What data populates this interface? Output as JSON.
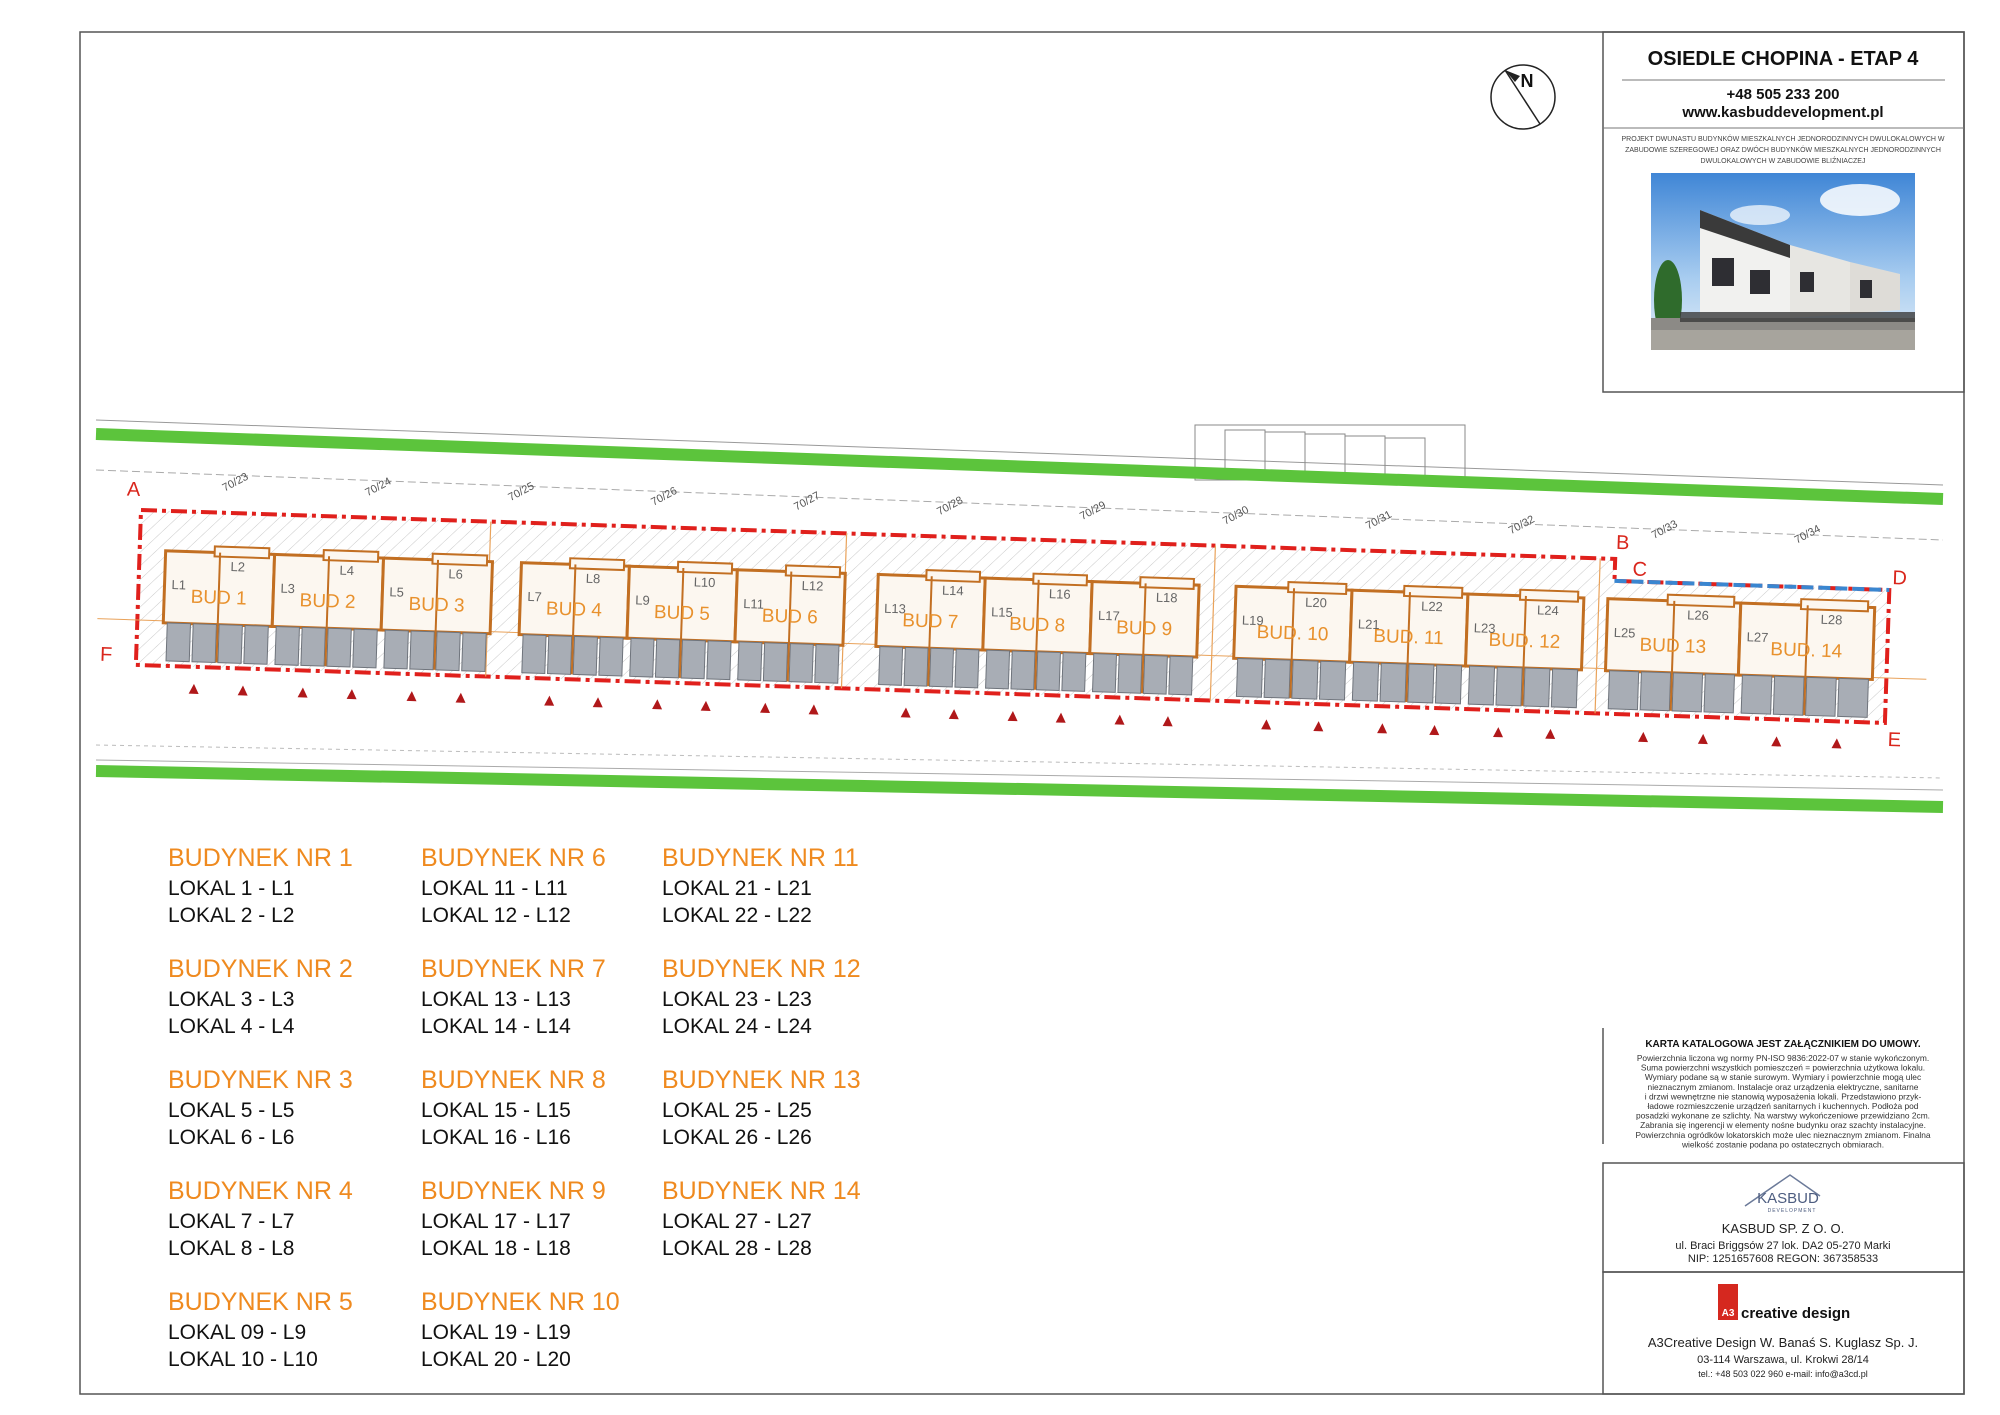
{
  "header": {
    "title": "OSIEDLE CHOPINA - ETAP 4",
    "phone": "+48 505 233 200",
    "website": "www.kasbuddevelopment.pl",
    "description": [
      "PROJEKT DWUNASTU BUDYNKÓW MIESZKALNYCH JEDNORODZINNYCH DWULOKALOWYCH W",
      "ZABUDOWIE SZEREGOWEJ ORAZ DWÓCH BUDYNKÓW MIESZKALNYCH JEDNORODZINNYCH",
      "DWULOKALOWYCH W ZABUDOWIE BLIŹNIACZEJ"
    ]
  },
  "compass": "N",
  "site_plan": {
    "points": [
      "A",
      "B",
      "C",
      "D",
      "E",
      "F"
    ],
    "parcels": [
      "70/23",
      "70/24",
      "70/25",
      "70/26",
      "70/27",
      "70/28",
      "70/29",
      "70/30",
      "70/31",
      "70/32",
      "70/33",
      "70/34"
    ],
    "buildings": [
      {
        "label": "BUD 1",
        "units": [
          "L1",
          "L2"
        ]
      },
      {
        "label": "BUD 2",
        "units": [
          "L3",
          "L4"
        ]
      },
      {
        "label": "BUD 3",
        "units": [
          "L5",
          "L6"
        ]
      },
      {
        "label": "BUD 4",
        "units": [
          "L7",
          "L8"
        ]
      },
      {
        "label": "BUD 5",
        "units": [
          "L9",
          "L10"
        ]
      },
      {
        "label": "BUD 6",
        "units": [
          "L11",
          "L12"
        ]
      },
      {
        "label": "BUD 7",
        "units": [
          "L13",
          "L14"
        ]
      },
      {
        "label": "BUD 8",
        "units": [
          "L15",
          "L16"
        ]
      },
      {
        "label": "BUD 9",
        "units": [
          "L17",
          "L18"
        ]
      },
      {
        "label": "BUD. 10",
        "units": [
          "L19",
          "L20"
        ]
      },
      {
        "label": "BUD. 11",
        "units": [
          "L21",
          "L22"
        ]
      },
      {
        "label": "BUD. 12",
        "units": [
          "L23",
          "L24"
        ]
      },
      {
        "label": "BUD 13",
        "units": [
          "L25",
          "L26"
        ]
      },
      {
        "label": "BUD. 14",
        "units": [
          "L27",
          "L28"
        ]
      }
    ]
  },
  "legend": [
    {
      "title": "BUDYNEK NR 1",
      "lines": [
        "LOKAL 1 - L1",
        "LOKAL 2 - L2"
      ]
    },
    {
      "title": "BUDYNEK NR 2",
      "lines": [
        "LOKAL 3 - L3",
        "LOKAL 4 - L4"
      ]
    },
    {
      "title": "BUDYNEK NR 3",
      "lines": [
        "LOKAL 5 - L5",
        "LOKAL 6 - L6"
      ]
    },
    {
      "title": "BUDYNEK NR 4",
      "lines": [
        "LOKAL 7 - L7",
        "LOKAL 8 - L8"
      ]
    },
    {
      "title": "BUDYNEK NR 5",
      "lines": [
        "LOKAL 09 - L9",
        "LOKAL 10 - L10"
      ]
    },
    {
      "title": "BUDYNEK NR 6",
      "lines": [
        "LOKAL 11 - L11",
        "LOKAL 12 - L12"
      ]
    },
    {
      "title": "BUDYNEK NR 7",
      "lines": [
        "LOKAL 13 - L13",
        "LOKAL 14 - L14"
      ]
    },
    {
      "title": "BUDYNEK NR 8",
      "lines": [
        "LOKAL 15 - L15",
        "LOKAL 16 - L16"
      ]
    },
    {
      "title": "BUDYNEK NR 9",
      "lines": [
        "LOKAL 17 - L17",
        "LOKAL 18 - L18"
      ]
    },
    {
      "title": "BUDYNEK NR 10",
      "lines": [
        "LOKAL 19 - L19",
        "LOKAL 20 - L20"
      ]
    },
    {
      "title": "BUDYNEK NR 11",
      "lines": [
        "LOKAL 21 - L21",
        "LOKAL 22 - L22"
      ]
    },
    {
      "title": "BUDYNEK NR 12",
      "lines": [
        "LOKAL 23 - L23",
        "LOKAL 24 - L24"
      ]
    },
    {
      "title": "BUDYNEK NR 13",
      "lines": [
        "LOKAL 25 - L25",
        "LOKAL 26 - L26"
      ]
    },
    {
      "title": "BUDYNEK NR 14",
      "lines": [
        "LOKAL 27 - L27",
        "LOKAL 28 - L28"
      ]
    }
  ],
  "note": {
    "title": "KARTA KATALOGOWA JEST ZAŁĄCZNIKIEM DO UMOWY.",
    "lines": [
      "Powierzchnia liczona wg normy PN-ISO 9836:2022-07 w stanie wykończonym.",
      "Suma powierzchni wszystkich pomieszczeń = powierzchnia użytkowa lokalu.",
      "Wymiary podane są w stanie surowym. Wymiary i powierzchnie mogą ulec",
      "nieznacznym zmianom. Instalacje oraz urządzenia elektryczne, sanitarne",
      "i drzwi wewnętrzne nie stanowią wyposażenia lokali. Przedstawiono przyk-",
      "ładowe rozmieszczenie urządzeń sanitarnych i kuchennych. Podłoża pod",
      "posadzki wykonane ze szlichty. Na warstwy wykończeniowe przewidziano 2cm.",
      "Zabrania się ingerencji w elementy nośne budynku oraz szachty instalacyjne.",
      "Powierzchnia ogródków lokatorskich może ulec nieznacznym zmianom. Finalna",
      "wielkość zostanie podana po ostatecznych obmiarach."
    ]
  },
  "developer": {
    "logo": "KASBUD",
    "logo_sub": "DEVELOPMENT",
    "name": "KASBUD SP. Z O. O.",
    "address": "ul. Braci Briggsów 27 lok. DA2 05-270 Marki",
    "ids": "NIP: 1251657608  REGON: 367358533"
  },
  "designer": {
    "logo_mark": "A3",
    "logo": "creative design",
    "name": "A3Creative Design W. Banaś S. Kuglasz Sp. J.",
    "address": "03-114 Warszawa, ul. Krokwi 28/14",
    "contact": "tel.: +48 503 022 960   e-mail: info@a3cd.pl"
  }
}
